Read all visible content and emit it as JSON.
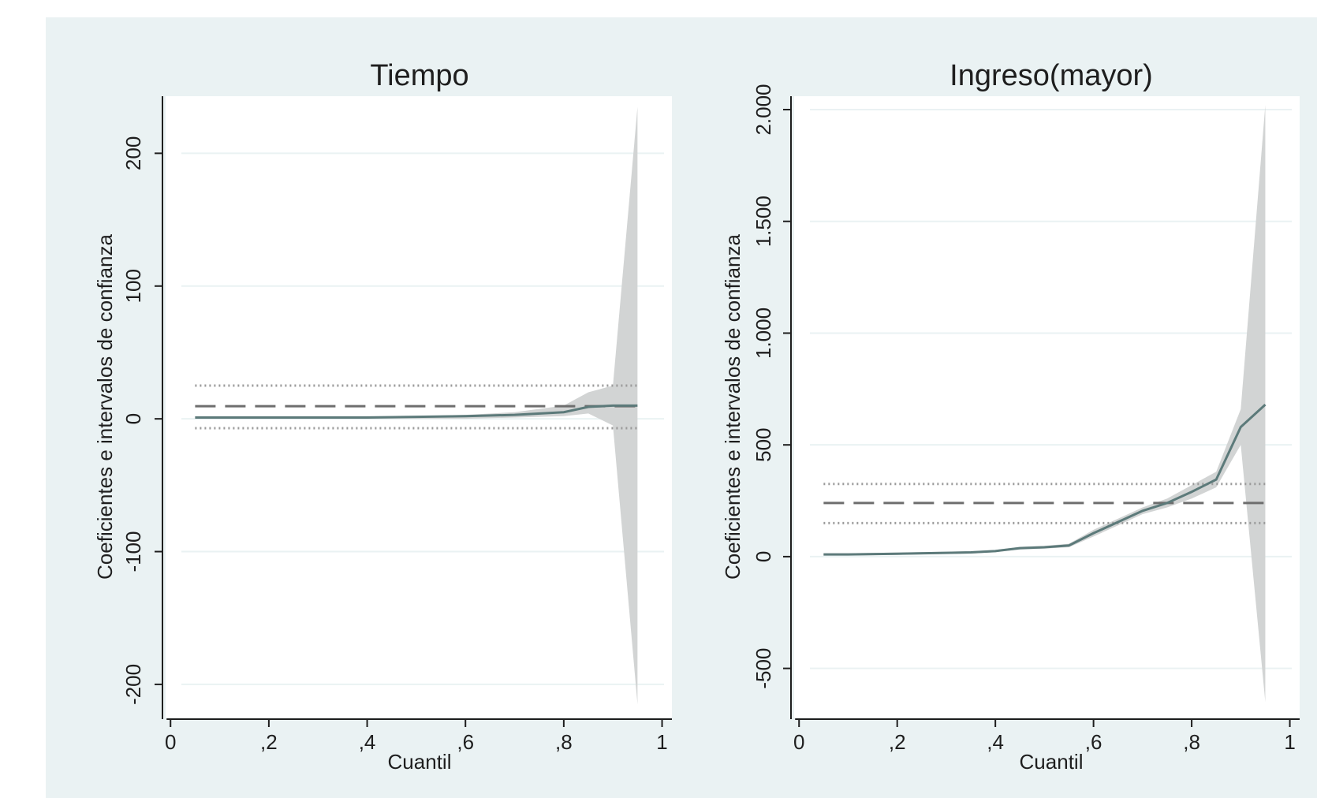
{
  "chart_data": [
    {
      "type": "line",
      "title": "Tiempo",
      "xlabel": "Cuantil",
      "ylabel": "Coeficientes e intervalos de confianza",
      "xlim": [
        -0.01,
        1.02
      ],
      "ylim": [
        -225,
        243
      ],
      "xticks": [
        0,
        0.2,
        0.4,
        0.6,
        0.8,
        1
      ],
      "xtick_labels": [
        "0",
        ",2",
        ",4",
        ",6",
        ",8",
        "1"
      ],
      "yticks": [
        -200,
        -100,
        0,
        100,
        200
      ],
      "ytick_labels": [
        "-200",
        "-100",
        "0",
        "100",
        "200"
      ],
      "grid": "horizontal",
      "band": {
        "x": [
          0.05,
          0.1,
          0.2,
          0.3,
          0.4,
          0.5,
          0.6,
          0.7,
          0.8,
          0.85,
          0.9,
          0.95
        ],
        "lower": [
          0,
          0,
          0,
          0,
          0,
          0,
          0,
          1,
          2,
          4,
          -5,
          -215
        ],
        "upper": [
          2,
          2,
          2,
          2,
          2,
          2,
          3,
          5,
          10,
          20,
          25,
          235
        ]
      },
      "coefficients": {
        "x": [
          0.05,
          0.1,
          0.2,
          0.3,
          0.4,
          0.5,
          0.6,
          0.7,
          0.8,
          0.85,
          0.9,
          0.95
        ],
        "y": [
          1,
          1,
          1,
          1,
          1,
          1.5,
          2,
          3,
          5,
          9,
          10,
          10
        ]
      },
      "ols": {
        "coef": 9.5,
        "ci_lower": -7,
        "ci_upper": 25,
        "x_range": [
          0.05,
          0.95
        ]
      }
    },
    {
      "type": "line",
      "title": "Ingreso(mayor)",
      "xlabel": "Cuantil",
      "ylabel": "Coeficientes e intervalos de confianza",
      "xlim": [
        -0.01,
        1.02
      ],
      "ylim": [
        -720,
        2060
      ],
      "xticks": [
        0,
        0.2,
        0.4,
        0.6,
        0.8,
        1
      ],
      "xtick_labels": [
        "0",
        ",2",
        ",4",
        ",6",
        ",8",
        "1"
      ],
      "yticks": [
        -500,
        0,
        500,
        1000,
        1500,
        2000
      ],
      "ytick_labels": [
        "-500",
        "0",
        "500",
        "1.000",
        "1.500",
        "2.000"
      ],
      "grid": "horizontal",
      "band": {
        "x": [
          0.05,
          0.1,
          0.2,
          0.3,
          0.35,
          0.4,
          0.45,
          0.5,
          0.55,
          0.6,
          0.65,
          0.7,
          0.75,
          0.8,
          0.85,
          0.9,
          0.95
        ],
        "lower": [
          5,
          5,
          8,
          12,
          14,
          20,
          32,
          36,
          42,
          90,
          140,
          190,
          220,
          260,
          310,
          500,
          -650
        ],
        "upper": [
          15,
          15,
          18,
          22,
          24,
          30,
          44,
          48,
          58,
          120,
          170,
          220,
          260,
          320,
          380,
          660,
          2020
        ]
      },
      "coefficients": {
        "x": [
          0.05,
          0.1,
          0.2,
          0.3,
          0.35,
          0.4,
          0.45,
          0.5,
          0.55,
          0.6,
          0.65,
          0.7,
          0.75,
          0.8,
          0.85,
          0.9,
          0.95
        ],
        "y": [
          10,
          10,
          13,
          17,
          19,
          25,
          38,
          42,
          50,
          105,
          155,
          205,
          240,
          290,
          345,
          580,
          680
        ]
      },
      "ols": {
        "coef": 240,
        "ci_lower": 150,
        "ci_upper": 325,
        "x_range": [
          0.05,
          0.95
        ]
      }
    }
  ],
  "colors": {
    "background": "#ffffff",
    "panel_background": "#eaf2f3",
    "plot_background": "#ffffff",
    "band_fill": "#d2d4d4",
    "line": "#5c7a7a",
    "gridline": "#eaf2f3",
    "ols_dash": "#6e6e6e",
    "ols_ci": "#9a9a9a",
    "axis": "#1e1e1e"
  }
}
